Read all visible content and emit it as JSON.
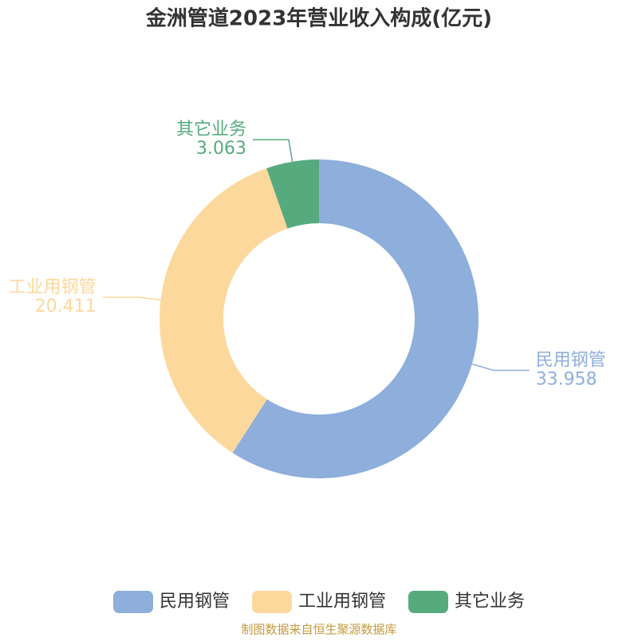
{
  "chart_data": {
    "type": "donut",
    "title": "金洲管道2023年营业收入构成(亿元)",
    "categories": [
      "民用钢管",
      "工业用钢管",
      "其它业务"
    ],
    "values": [
      33.958,
      20.411,
      3.063
    ],
    "colors": [
      "#8eaedb",
      "#fdd89c",
      "#56ab7e"
    ],
    "source": "制图数据来自恒生聚源数据库"
  }
}
